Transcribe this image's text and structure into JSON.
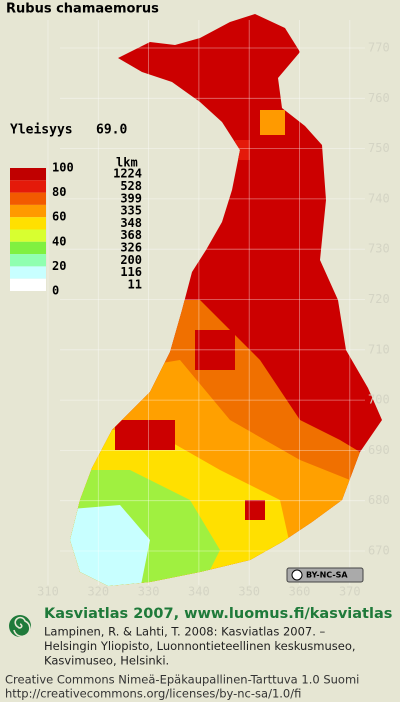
{
  "header": {
    "title": "Rubus chamaemorus",
    "frequency_label": "Yleisyys",
    "frequency_value": "69.0"
  },
  "legend": {
    "scale_labels": [
      100,
      80,
      60,
      40,
      20,
      0
    ],
    "count_heading": "lkm",
    "counts": [
      1224,
      528,
      399,
      335,
      348,
      368,
      326,
      200,
      116,
      11
    ],
    "colors": [
      "#c00000",
      "#e41a0a",
      "#f25a00",
      "#ff9a00",
      "#ffe000",
      "#d8ff30",
      "#80f040",
      "#90ffb0",
      "#c8ffff",
      "#ffffff"
    ]
  },
  "grid": {
    "north": [
      770,
      760,
      750,
      740,
      730,
      720,
      710,
      700,
      690,
      680,
      670
    ],
    "east": [
      310,
      320,
      330,
      340,
      350,
      360,
      370
    ]
  },
  "license_badge": "BY-NC-SA",
  "footer": {
    "heading": "Kasviatlas 2007, www.luomus.fi/kasviatlas",
    "citation": [
      "Lampinen, R. & Lahti, T. 2008: Kasviatlas 2007. –",
      "Helsingin Yliopisto, Luonnontieteellinen keskusmuseo,",
      "Kasvimuseo, Helsinki."
    ],
    "license": [
      "Creative Commons Nimeä-Epäkaupallinen-Tarttuva 1.0 Suomi",
      "http://creativecommons.org/licenses/by-nc-sa/1.0/fi"
    ]
  }
}
